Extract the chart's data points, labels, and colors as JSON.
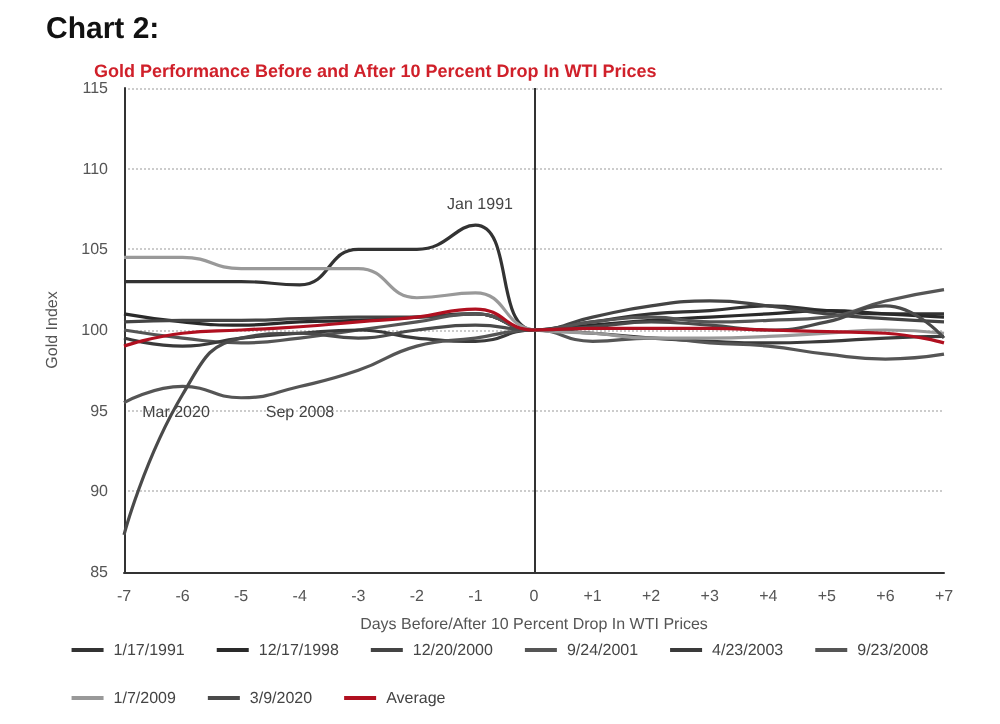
{
  "chart_data": {
    "type": "line",
    "title": "Chart 2:",
    "subtitle": "Gold Performance Before and After 10 Percent Drop In WTI Prices",
    "xlabel": "Days Before/After 10 Percent Drop In WTI Prices",
    "ylabel": "Gold Index",
    "categories": [
      "-7",
      "-6",
      "-5",
      "-4",
      "-3",
      "-2",
      "-1",
      "0",
      "+1",
      "+2",
      "+3",
      "+4",
      "+5",
      "+6",
      "+7"
    ],
    "series": [
      {
        "name": "1/17/1991",
        "color": "#333333",
        "values": [
          103,
          103,
          103,
          102.8,
          105,
          105,
          106.5,
          100,
          100.5,
          101,
          101.2,
          101.5,
          101.2,
          101,
          101
        ]
      },
      {
        "name": "12/17/1998",
        "color": "#2a2a2a",
        "values": [
          101,
          100.5,
          100.3,
          100.5,
          100.6,
          100.8,
          101,
          100,
          100.3,
          100.6,
          100.8,
          101,
          101.2,
          101,
          100.8
        ]
      },
      {
        "name": "12/20/2000",
        "color": "#444444",
        "values": [
          100.5,
          100.6,
          100.6,
          100.7,
          100.8,
          100.8,
          101,
          100,
          100.8,
          101.5,
          101.8,
          101.5,
          101,
          100.7,
          100.5
        ]
      },
      {
        "name": "9/24/2001",
        "color": "#555555",
        "values": [
          100,
          99.5,
          99.2,
          99.5,
          100,
          100.5,
          101,
          100,
          100.5,
          100.8,
          100.5,
          100.6,
          100.8,
          101.8,
          102.5
        ]
      },
      {
        "name": "4/23/2003",
        "color": "#3a3a3a",
        "values": [
          99.5,
          99,
          99.5,
          99.8,
          100,
          99.5,
          99.3,
          100,
          99.8,
          99.5,
          99.3,
          99.2,
          99.3,
          99.5,
          99.6
        ]
      },
      {
        "name": "9/23/2008",
        "color": "#555555",
        "values": [
          95.5,
          96.5,
          95.8,
          96.5,
          97.5,
          99,
          99.5,
          100,
          99.3,
          99.5,
          99.2,
          99,
          98.5,
          98.2,
          98.5
        ]
      },
      {
        "name": "1/7/2009",
        "color": "#999999",
        "values": [
          104.5,
          104.5,
          103.8,
          103.8,
          103.8,
          102,
          102.3,
          100,
          99.8,
          99.5,
          99.5,
          99.6,
          99.8,
          100,
          99.8
        ]
      },
      {
        "name": "3/9/2020",
        "color": "#4a4a4a",
        "values": [
          87.3,
          96,
          99.5,
          99.8,
          99.5,
          100,
          100.3,
          100,
          100.2,
          100.5,
          100.3,
          100,
          100.5,
          101.5,
          99.5
        ]
      },
      {
        "name": "Average",
        "color": "#b01020",
        "values": [
          99,
          99.8,
          100,
          100.2,
          100.5,
          100.8,
          101.3,
          100,
          100.1,
          100.1,
          100.1,
          100,
          99.9,
          99.8,
          99.2
        ]
      }
    ],
    "ylim": [
      85,
      115
    ],
    "yticks": [
      85,
      90,
      95,
      100,
      105,
      110,
      115
    ],
    "grid": "y",
    "legend": "bottom",
    "marker": "none",
    "line_style": "solid",
    "ref_lines": [
      {
        "axis": "x",
        "value": "0",
        "color": "#333333"
      }
    ],
    "annotations": [
      "Jan 1991",
      "Mar 2020",
      "Sep 2008"
    ]
  }
}
